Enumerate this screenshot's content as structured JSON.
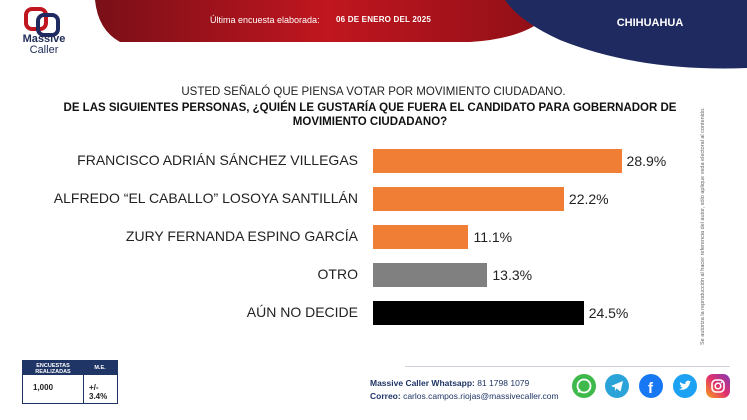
{
  "header": {
    "brand_line1": "Massive",
    "brand_line2": "Caller",
    "survey_label": "Última encuesta elaborada:",
    "survey_date": "06 DE ENERO DEL 2025",
    "region": "CHIHUAHUA"
  },
  "question": {
    "intro": "USTED SEÑALÓ QUE PIENSA VOTAR POR MOVIMIENTO CIUDADANO.",
    "main": "DE LAS SIGUIENTES PERSONAS, ¿QUIÉN LE GUSTARÍA QUE FUERA EL CANDIDATO PARA GOBERNADOR DE MOVIMIENTO CIUDADANO?"
  },
  "side_note": "Se autoriza la reproducción al hacer referencia del autor, sólo aplique veda electoral al contenido.",
  "chart_data": {
    "type": "bar",
    "orientation": "horizontal",
    "categories": [
      "FRANCISCO ADRIÁN SÁNCHEZ VILLEGAS",
      "ALFREDO “EL CABALLO” LOSOYA SANTILLÁN",
      "ZURY FERNANDA ESPINO GARCÍA",
      "OTRO",
      "AÚN NO DECIDE"
    ],
    "values": [
      28.9,
      22.2,
      11.1,
      13.3,
      24.5
    ],
    "value_labels": [
      "28.9%",
      "22.2%",
      "11.1%",
      "13.3%",
      "24.5%"
    ],
    "colors": [
      "#f07f35",
      "#f07f35",
      "#f07f35",
      "#808080",
      "#000000"
    ],
    "xlim": [
      0,
      30
    ],
    "grid": false,
    "title": ""
  },
  "stats": {
    "header_left": "ENCUESTAS REALIZADAS",
    "header_right": "M.E.",
    "count": "1,000",
    "margin": "+/- 3.4%"
  },
  "contact": {
    "whatsapp_label": "Massive Caller Whatsapp:",
    "whatsapp_number": "81 1798 1079",
    "email_label": "Correo:",
    "email": "carlos.campos.riojas@massivecaller.com"
  },
  "colors": {
    "header_red": "#b3151e",
    "header_navy": "#1f2a60",
    "accent_orange": "#f07f35"
  }
}
